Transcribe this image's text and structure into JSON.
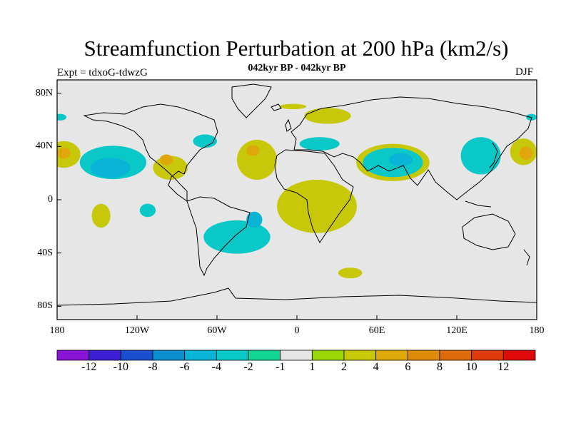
{
  "title": "Streamfunction Perturbation at 200 hPa (km2/s)",
  "subtitle": "042kyr BP - 042kyr BP",
  "experiment_label": "Expt = tdxoG-tdwzG",
  "season_label": "DJF",
  "axes": {
    "lon_ticks": [
      "180",
      "120W",
      "60W",
      "0",
      "60E",
      "120E",
      "180"
    ],
    "lat_ticks": [
      "80N",
      "40N",
      "0",
      "40S",
      "80S"
    ]
  },
  "colorbar": {
    "labels": [
      "-12",
      "-10",
      "-8",
      "-6",
      "-4",
      "-2",
      "-1",
      "1",
      "2",
      "4",
      "6",
      "8",
      "10",
      "12"
    ],
    "colors": [
      "#8a14d6",
      "#3c1fd4",
      "#1a50d0",
      "#0a8ed0",
      "#0ab4d6",
      "#0ac8c8",
      "#14d493",
      "#e6e6e6",
      "#9bd80a",
      "#c8c80a",
      "#dea80a",
      "#de8a0a",
      "#de6a0a",
      "#de3a0a",
      "#de0a0a"
    ]
  },
  "chart_data": {
    "type": "heatmap",
    "title": "Streamfunction Perturbation at 200 hPa (km2/s)",
    "subtitle": "042kyr BP - 042kyr BP",
    "projection": "cylindrical-equidistant",
    "lon_range": [
      -180,
      180
    ],
    "lat_range": [
      -90,
      90
    ],
    "contour_levels": [
      -12,
      -10,
      -8,
      -6,
      -4,
      -2,
      -1,
      1,
      2,
      4,
      6,
      8,
      10,
      12
    ],
    "background_color": "#e6e6e6",
    "features": [
      {
        "sign": "negative",
        "level": -2,
        "center": [
          -138,
          28
        ],
        "extent_deg": [
          50,
          25
        ]
      },
      {
        "sign": "negative",
        "level": -4,
        "center": [
          -140,
          24
        ],
        "extent_deg": [
          30,
          15
        ]
      },
      {
        "sign": "positive",
        "level": 2,
        "center": [
          -175,
          34
        ],
        "extent_deg": [
          25,
          20
        ]
      },
      {
        "sign": "positive",
        "level": 4,
        "center": [
          -175,
          35
        ],
        "extent_deg": [
          10,
          8
        ]
      },
      {
        "sign": "positive",
        "level": 2,
        "center": [
          -147,
          -12
        ],
        "extent_deg": [
          14,
          18
        ]
      },
      {
        "sign": "negative",
        "level": -2,
        "center": [
          -112,
          -8
        ],
        "extent_deg": [
          12,
          10
        ]
      },
      {
        "sign": "positive",
        "level": 2,
        "center": [
          -95,
          24
        ],
        "extent_deg": [
          26,
          18
        ]
      },
      {
        "sign": "positive",
        "level": 4,
        "center": [
          -98,
          30
        ],
        "extent_deg": [
          10,
          8
        ]
      },
      {
        "sign": "negative",
        "level": -2,
        "center": [
          -69,
          44
        ],
        "extent_deg": [
          18,
          10
        ]
      },
      {
        "sign": "positive",
        "level": 2,
        "center": [
          -30,
          30
        ],
        "extent_deg": [
          30,
          30
        ]
      },
      {
        "sign": "positive",
        "level": 4,
        "center": [
          -33,
          37
        ],
        "extent_deg": [
          10,
          8
        ]
      },
      {
        "sign": "positive",
        "level": 2,
        "center": [
          15,
          -5
        ],
        "extent_deg": [
          60,
          40
        ]
      },
      {
        "sign": "negative",
        "level": -2,
        "center": [
          -45,
          -28
        ],
        "extent_deg": [
          50,
          25
        ]
      },
      {
        "sign": "negative",
        "level": -4,
        "center": [
          -32,
          -15
        ],
        "extent_deg": [
          12,
          12
        ]
      },
      {
        "sign": "negative",
        "level": -2,
        "center": [
          17,
          42
        ],
        "extent_deg": [
          30,
          10
        ]
      },
      {
        "sign": "positive",
        "level": 2,
        "center": [
          23,
          63
        ],
        "extent_deg": [
          35,
          12
        ]
      },
      {
        "sign": "positive",
        "level": 2,
        "center": [
          -3,
          70
        ],
        "extent_deg": [
          20,
          4
        ]
      },
      {
        "sign": "positive",
        "level": 2,
        "center": [
          72,
          28
        ],
        "extent_deg": [
          55,
          28
        ]
      },
      {
        "sign": "negative",
        "level": -2,
        "center": [
          72,
          28
        ],
        "extent_deg": [
          45,
          22
        ]
      },
      {
        "sign": "negative",
        "level": -4,
        "center": [
          78,
          30
        ],
        "extent_deg": [
          18,
          10
        ]
      },
      {
        "sign": "negative",
        "level": -2,
        "center": [
          138,
          33
        ],
        "extent_deg": [
          30,
          28
        ]
      },
      {
        "sign": "positive",
        "level": 2,
        "center": [
          170,
          36
        ],
        "extent_deg": [
          20,
          20
        ]
      },
      {
        "sign": "positive",
        "level": 4,
        "center": [
          172,
          35
        ],
        "extent_deg": [
          10,
          10
        ]
      },
      {
        "sign": "negative",
        "level": -2,
        "center": [
          -178,
          62
        ],
        "extent_deg": [
          10,
          5
        ]
      },
      {
        "sign": "negative",
        "level": -2,
        "center": [
          176,
          62
        ],
        "extent_deg": [
          8,
          5
        ]
      },
      {
        "sign": "positive",
        "level": 2,
        "center": [
          40,
          -55
        ],
        "extent_deg": [
          18,
          8
        ]
      }
    ]
  }
}
